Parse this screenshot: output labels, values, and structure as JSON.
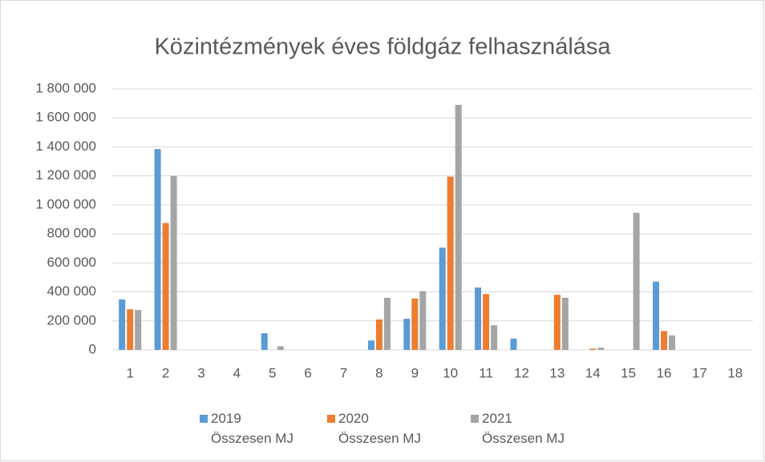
{
  "chart_data": {
    "type": "bar",
    "title": "Közintézmények éves földgáz felhasználása",
    "categories": [
      "1",
      "2",
      "3",
      "4",
      "5",
      "6",
      "7",
      "8",
      "9",
      "10",
      "11",
      "12",
      "13",
      "14",
      "15",
      "16",
      "17",
      "18"
    ],
    "series": [
      {
        "name": "2019 Összesen MJ",
        "color": "#5b9bd5",
        "values": [
          348000,
          1385000,
          0,
          0,
          115000,
          0,
          0,
          65000,
          215000,
          705000,
          430000,
          78000,
          0,
          0,
          0,
          470000,
          0,
          0
        ]
      },
      {
        "name": "2020 Összesen MJ",
        "color": "#ed7d31",
        "values": [
          280000,
          875000,
          0,
          0,
          0,
          0,
          0,
          210000,
          355000,
          1195000,
          385000,
          0,
          380000,
          8000,
          0,
          130000,
          0,
          0
        ]
      },
      {
        "name": "2021 Összesen MJ",
        "color": "#a5a5a5",
        "values": [
          275000,
          1200000,
          0,
          0,
          25000,
          0,
          0,
          360000,
          405000,
          1690000,
          170000,
          0,
          360000,
          15000,
          945000,
          100000,
          0,
          0
        ]
      }
    ],
    "ylim": [
      0,
      1800000
    ],
    "yticks": [
      0,
      {
        "value": 200000,
        "label": "200 000"
      },
      {
        "value": 400000,
        "label": "400 000"
      },
      {
        "value": 600000,
        "label": "600 000"
      },
      {
        "value": 800000,
        "label": "800 000"
      },
      {
        "value": 1000000,
        "label": "1 000 000"
      },
      {
        "value": 1200000,
        "label": "1 200 000"
      },
      {
        "value": 1400000,
        "label": "1 400 000"
      },
      {
        "value": 1600000,
        "label": "1 600 000"
      },
      {
        "value": 1800000,
        "label": "1 800 000"
      }
    ],
    "grid": true
  }
}
